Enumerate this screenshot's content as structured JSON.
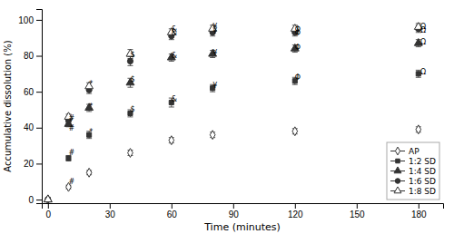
{
  "chart_data": {
    "type": "scatter",
    "xlabel": "Time (minutes)",
    "ylabel": "Accumulative dissolution (%)",
    "x": [
      0,
      10,
      20,
      40,
      60,
      80,
      120,
      180
    ],
    "series": [
      {
        "name": "AP",
        "color": "#333333",
        "marker": "diamond-open",
        "values": [
          0,
          7,
          15,
          26,
          33,
          36,
          38,
          39
        ],
        "errors": [
          0,
          1.0,
          1.2,
          1.5,
          1.5,
          1.5,
          1.5,
          1.5
        ]
      },
      {
        "name": "1:2 SD",
        "color": "#333333",
        "marker": "square",
        "values": [
          0,
          23,
          36,
          48,
          54,
          62,
          66,
          70
        ],
        "errors": [
          0,
          1.5,
          2.0,
          2.0,
          2.5,
          2.0,
          2.0,
          2.0
        ]
      },
      {
        "name": "1:4 SD",
        "color": "#333333",
        "marker": "triangle-up",
        "values": [
          0,
          42,
          51,
          65,
          79,
          81,
          84,
          87
        ],
        "errors": [
          0,
          1.5,
          2.0,
          2.5,
          2.0,
          2.0,
          2.0,
          2.0
        ]
      },
      {
        "name": "1:6 SD",
        "color": "#333333",
        "marker": "circle",
        "values": [
          0,
          44,
          61,
          77,
          91,
          93,
          93,
          95
        ],
        "errors": [
          0,
          1.5,
          2.0,
          2.5,
          2.0,
          2.0,
          2.0,
          2.0
        ]
      },
      {
        "name": "1:8 SD",
        "color": "#333333",
        "marker": "triangle-up-open",
        "values": [
          0,
          46,
          63,
          81,
          93,
          95,
          95,
          96
        ],
        "errors": [
          0,
          1.5,
          2.0,
          2.5,
          2.0,
          2.0,
          2.0,
          2.0
        ]
      }
    ],
    "annotations": [
      {
        "x": 10,
        "y": 8.5,
        "text": "#"
      },
      {
        "x": 10,
        "y": 24.5,
        "text": "#"
      },
      {
        "x": 10,
        "y": 38.5,
        "text": "#"
      },
      {
        "x": 10,
        "y": 44.0,
        "text": "#"
      },
      {
        "x": 20,
        "y": 36.5,
        "text": "*"
      },
      {
        "x": 20,
        "y": 50.5,
        "text": "*"
      },
      {
        "x": 20,
        "y": 63.0,
        "text": "*"
      },
      {
        "x": 40,
        "y": 49.0,
        "text": "$"
      },
      {
        "x": 40,
        "y": 65.5,
        "text": "$"
      },
      {
        "x": 40,
        "y": 79.5,
        "text": "$"
      },
      {
        "x": 60,
        "y": 54.5,
        "text": "&"
      },
      {
        "x": 60,
        "y": 78.5,
        "text": "&"
      },
      {
        "x": 60,
        "y": 91.5,
        "text": "&"
      },
      {
        "x": 60,
        "y": 93.5,
        "text": "&"
      },
      {
        "x": 80,
        "y": 62.0,
        "text": "¥"
      },
      {
        "x": 80,
        "y": 80.5,
        "text": "¥"
      },
      {
        "x": 80,
        "y": 92.5,
        "text": "¥"
      },
      {
        "x": 80,
        "y": 95.0,
        "text": "¥"
      },
      {
        "x": 120,
        "y": 66.5,
        "text": "Φ"
      },
      {
        "x": 120,
        "y": 83.5,
        "text": "Φ"
      },
      {
        "x": 120,
        "y": 91.5,
        "text": "Φ"
      },
      {
        "x": 120,
        "y": 93.5,
        "text": "Φ"
      },
      {
        "x": 181,
        "y": 69.5,
        "text": "Ω"
      },
      {
        "x": 181,
        "y": 86.5,
        "text": "Ω"
      },
      {
        "x": 181,
        "y": 93.0,
        "text": "Ω"
      },
      {
        "x": 181,
        "y": 95.0,
        "text": "Ω"
      }
    ],
    "xlim": [
      -3,
      192
    ],
    "ylim": [
      -2,
      106
    ],
    "xticks": [
      0,
      30,
      60,
      90,
      120,
      150,
      180
    ],
    "yticks": [
      0,
      20,
      40,
      60,
      80,
      100
    ],
    "grid": false,
    "legend": "lower right"
  }
}
